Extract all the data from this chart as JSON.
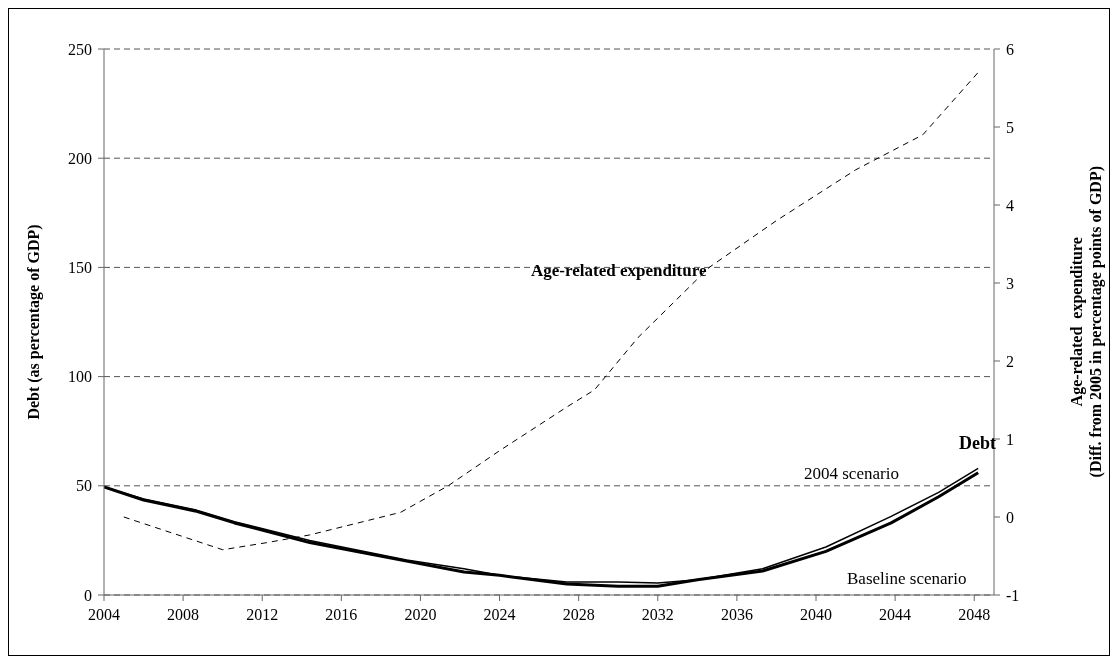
{
  "chart_data": {
    "type": "line",
    "ylabel": "Debt (as percentage of GDP)",
    "y2label": "Age-related  expenditure\n(Diff. from 2005 in percentage points of GDP)",
    "xlim": [
      2004,
      2049
    ],
    "xticks": [
      2004,
      2008,
      2012,
      2016,
      2020,
      2024,
      2028,
      2032,
      2036,
      2040,
      2044,
      2048
    ],
    "ylim": [
      0,
      250
    ],
    "yticks": [
      0,
      50,
      100,
      150,
      200,
      250
    ],
    "y2lim": [
      -1,
      6
    ],
    "y2ticks": [
      -1,
      0,
      1,
      2,
      3,
      4,
      5,
      6
    ],
    "grid": "y",
    "line_style": "solid",
    "annotations": [
      "Debt"
    ],
    "series": [
      {
        "name": "2004 scenario",
        "color": "#000000",
        "x": [
          2004,
          2006,
          2008.6,
          2010.6,
          2014.4,
          2019.3,
          2022.2,
          2024,
          2027.4,
          2030,
          2032,
          2034,
          2037.3,
          2040.5,
          2043.8,
          2046.2,
          2048.2
        ],
        "values": [
          49.5,
          44,
          39,
          33.5,
          25,
          16,
          12,
          9,
          6,
          6,
          5.5,
          7,
          12,
          22,
          36,
          47,
          58
        ]
      },
      {
        "name": "Baseline scenario",
        "color": "#000000",
        "x": [
          2004,
          2006,
          2008.6,
          2010.6,
          2014.4,
          2019.3,
          2022.2,
          2024,
          2027.4,
          2030,
          2032,
          2034,
          2037.3,
          2040.5,
          2043.8,
          2046.2,
          2048.2
        ],
        "values": [
          49.5,
          43.5,
          38.5,
          33,
          24,
          15.5,
          10.5,
          9,
          5,
          4,
          4,
          7,
          11,
          20,
          33,
          45,
          56
        ]
      },
      {
        "name": "Age-related expenditure",
        "color": "#000000",
        "axis": "y2",
        "line_style": "dashed",
        "x": [
          2005,
          2010,
          2012.2,
          2014.4,
          2019,
          2021.4,
          2024,
          2027.4,
          2028.8,
          2031,
          2034.6,
          2038,
          2042,
          2045.4,
          2048.2
        ],
        "values": [
          0,
          -0.42,
          -0.33,
          -0.23,
          0.06,
          0.4,
          0.85,
          1.41,
          1.63,
          2.3,
          3.2,
          3.8,
          4.45,
          4.9,
          5.7
        ]
      }
    ]
  }
}
